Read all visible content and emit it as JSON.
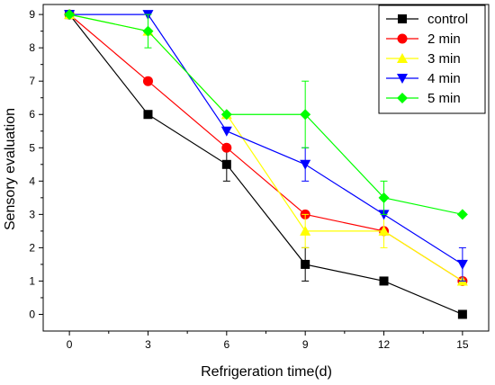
{
  "chart_data": {
    "type": "line",
    "title": "",
    "xlabel": "Refrigeration time(d)",
    "ylabel": "Sensory evaluation",
    "x": [
      0,
      3,
      6,
      9,
      12,
      15
    ],
    "xticks": [
      "0",
      "3",
      "6",
      "9",
      "12",
      "15"
    ],
    "yticks": [
      "0",
      "1",
      "2",
      "3",
      "4",
      "5",
      "6",
      "7",
      "8",
      "9"
    ],
    "xlim": [
      -1,
      16
    ],
    "ylim": [
      -0.5,
      9.3
    ],
    "grid": false,
    "legend_position": "top-right",
    "series": [
      {
        "name": "control",
        "color": "#000000",
        "marker": "square",
        "values": [
          9,
          6,
          4.5,
          1.5,
          1,
          0
        ],
        "errors": [
          0,
          0,
          0.5,
          0.5,
          0,
          0
        ]
      },
      {
        "name": "2 min",
        "color": "#ff0000",
        "marker": "circle",
        "values": [
          9,
          7,
          5,
          3,
          2.5,
          1
        ],
        "errors": [
          0,
          0,
          0,
          0,
          0,
          0
        ]
      },
      {
        "name": "3 min",
        "color": "#ffff00",
        "marker": "triangle-up",
        "values": [
          9,
          8.5,
          6,
          2.5,
          2.5,
          1
        ],
        "errors": [
          0,
          0,
          0,
          0.5,
          0.5,
          0
        ]
      },
      {
        "name": "4 min",
        "color": "#0000ff",
        "marker": "triangle-down",
        "values": [
          9,
          9,
          5.5,
          4.5,
          3,
          1.5
        ],
        "errors": [
          0,
          0,
          0,
          0.5,
          0,
          0.5
        ]
      },
      {
        "name": "5 min",
        "color": "#00ff00",
        "marker": "diamond",
        "values": [
          9,
          8.5,
          6,
          6,
          3.5,
          3
        ],
        "errors": [
          0,
          0.5,
          0,
          1,
          0.5,
          0
        ]
      }
    ]
  }
}
